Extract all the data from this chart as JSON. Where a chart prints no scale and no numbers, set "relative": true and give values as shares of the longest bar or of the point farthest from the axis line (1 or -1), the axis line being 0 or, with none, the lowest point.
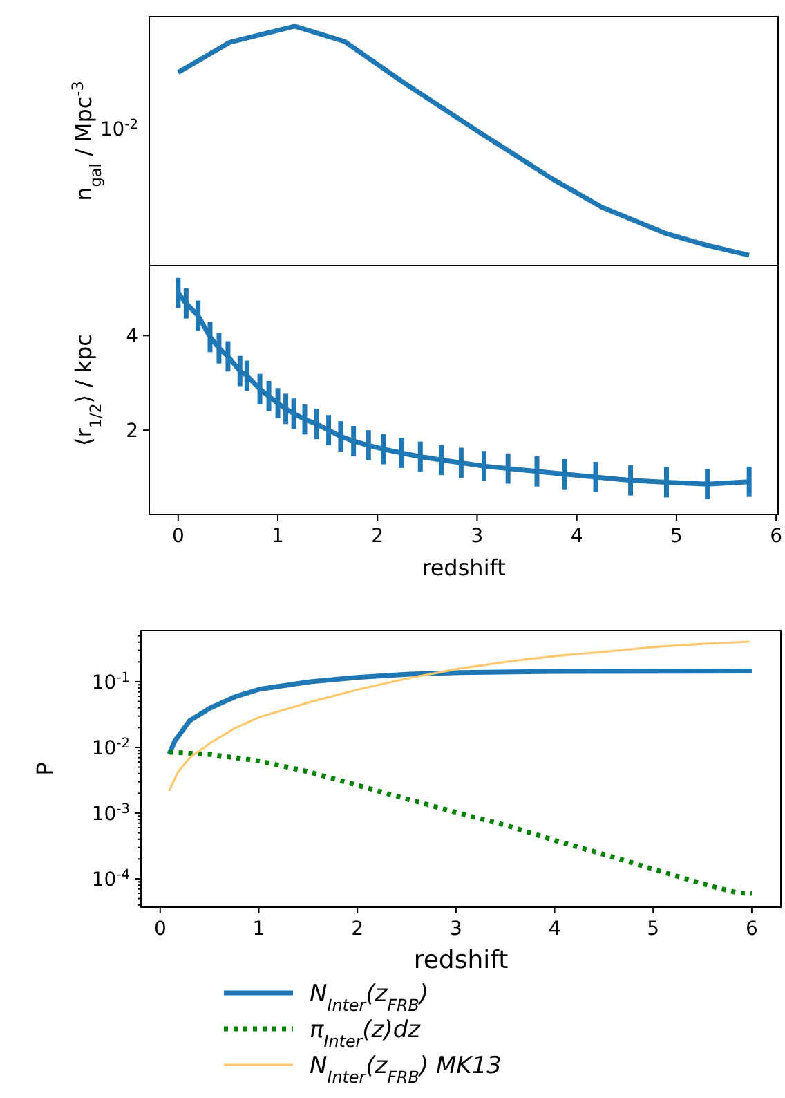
{
  "chart_data": [
    {
      "type": "line",
      "ylabel": "n$_{gal}$ / Mpc$^{-3}$",
      "relative": true,
      "xlim": [
        -0.29,
        6.02
      ],
      "annotations": [
        "10$^{-2}$"
      ],
      "x": [
        0,
        0.52,
        1.17,
        1.67,
        2.26,
        3.01,
        3.75,
        4.25,
        4.9,
        5.31,
        5.73
      ],
      "series": [
        {
          "color": "#1f77b4",
          "values": [
            0.807,
            0.933,
            1,
            0.936,
            0.765,
            0.56,
            0.363,
            0.244,
            0.133,
            0.084,
            0.043
          ]
        }
      ]
    },
    {
      "type": "line",
      "ylabel": "⟨r$_{1/2}$⟩ / kpc",
      "xlabel": "redshift",
      "xlim": [
        -0.29,
        6.02
      ],
      "ylim": [
        0.22,
        5.48
      ],
      "xticks": [
        0,
        1,
        2,
        3,
        4,
        5,
        6
      ],
      "yticks": [
        2,
        4
      ],
      "x": [
        0,
        0.08,
        0.2,
        0.32,
        0.41,
        0.5,
        0.62,
        0.69,
        0.82,
        0.91,
        1.0,
        1.08,
        1.16,
        1.27,
        1.39,
        1.51,
        1.63,
        1.76,
        1.91,
        2.06,
        2.24,
        2.43,
        2.64,
        2.84,
        3.07,
        3.31,
        3.6,
        3.88,
        4.19,
        4.54,
        4.9,
        5.31,
        5.73
      ],
      "series": [
        {
          "color": "#1f77b4",
          "values": [
            4.9,
            4.68,
            4.42,
            3.97,
            3.73,
            3.56,
            3.25,
            3.15,
            2.87,
            2.72,
            2.57,
            2.45,
            2.35,
            2.23,
            2.13,
            2.0,
            1.87,
            1.77,
            1.68,
            1.6,
            1.52,
            1.44,
            1.37,
            1.31,
            1.24,
            1.19,
            1.13,
            1.07,
            1.01,
            0.94,
            0.9,
            0.86,
            0.91
          ],
          "errors": [
            0.32,
            0.32,
            0.32,
            0.32,
            0.32,
            0.32,
            0.32,
            0.32,
            0.32,
            0.32,
            0.32,
            0.32,
            0.32,
            0.32,
            0.32,
            0.32,
            0.32,
            0.32,
            0.32,
            0.32,
            0.32,
            0.32,
            0.32,
            0.32,
            0.32,
            0.32,
            0.32,
            0.32,
            0.32,
            0.32,
            0.32,
            0.32,
            0.32
          ]
        }
      ]
    },
    {
      "type": "line",
      "ylabel": "P",
      "xlabel": "redshift",
      "log": "y",
      "xlim": [
        -0.195,
        6.295
      ],
      "ylim": [
        3.7e-05,
        0.6
      ],
      "xticks": [
        0,
        1,
        2,
        3,
        4,
        5,
        6
      ],
      "legend": "bottom",
      "yticks": [
        {
          "value": 4e-05,
          "label": null
        },
        {
          "value": 5e-05,
          "label": null
        },
        {
          "value": 6e-05,
          "label": null
        },
        {
          "value": 7e-05,
          "label": null
        },
        {
          "value": 8e-05,
          "label": null
        },
        {
          "value": 9e-05,
          "label": null
        },
        {
          "value": 0.0001,
          "label": "10$^{-4}$"
        },
        {
          "value": 0.0002,
          "label": null
        },
        {
          "value": 0.0003,
          "label": null
        },
        {
          "value": 0.0004,
          "label": null
        },
        {
          "value": 0.0005,
          "label": null
        },
        {
          "value": 0.0006,
          "label": null
        },
        {
          "value": 0.0007,
          "label": null
        },
        {
          "value": 0.0008,
          "label": null
        },
        {
          "value": 0.0009,
          "label": null
        },
        {
          "value": 0.001,
          "label": "10$^{-3}$"
        },
        {
          "value": 0.002,
          "label": null
        },
        {
          "value": 0.003,
          "label": null
        },
        {
          "value": 0.004,
          "label": null
        },
        {
          "value": 0.005,
          "label": null
        },
        {
          "value": 0.006,
          "label": null
        },
        {
          "value": 0.007,
          "label": null
        },
        {
          "value": 0.008,
          "label": null
        },
        {
          "value": 0.009,
          "label": null
        },
        {
          "value": 0.01,
          "label": "10$^{-2}$"
        },
        {
          "value": 0.02,
          "label": null
        },
        {
          "value": 0.03,
          "label": null
        },
        {
          "value": 0.04,
          "label": null
        },
        {
          "value": 0.05,
          "label": null
        },
        {
          "value": 0.06,
          "label": null
        },
        {
          "value": 0.07,
          "label": null
        },
        {
          "value": 0.08,
          "label": null
        },
        {
          "value": 0.09,
          "label": null
        },
        {
          "value": 0.1,
          "label": "10$^{-1}$"
        },
        {
          "value": 0.2,
          "label": null
        },
        {
          "value": 0.3,
          "label": null
        },
        {
          "value": 0.4,
          "label": null
        },
        {
          "value": 0.5,
          "label": null
        }
      ],
      "series": [
        {
          "name": "N$_{Inter}$(z$_{FRB}$)",
          "color": "#1f77b4",
          "line_style": "solid",
          "x": [
            0.09,
            0.15,
            0.3,
            0.51,
            0.76,
            1.01,
            1.52,
            2.02,
            2.53,
            3.03,
            4.04,
            6.0
          ],
          "values": [
            0.0079,
            0.0126,
            0.0256,
            0.04,
            0.059,
            0.077,
            0.1,
            0.117,
            0.13,
            0.138,
            0.144,
            0.145
          ]
        },
        {
          "name": "π$_{Inter}$(z)dz",
          "color": "#008000",
          "line_style": "dotted",
          "x": [
            0.09,
            0.51,
            1.01,
            1.52,
            2.02,
            2.53,
            3.03,
            3.54,
            4.04,
            4.55,
            5.06,
            5.56,
            5.86,
            6.0
          ],
          "values": [
            0.0085,
            0.0078,
            0.0062,
            0.0042,
            0.0026,
            0.0016,
            0.001,
            0.00063,
            0.00037,
            0.000224,
            0.000132,
            7.9e-05,
            6.1e-05,
            6e-05
          ]
        },
        {
          "name": "N$_{Inter}$(z$_{FRB}$) MK13",
          "color": "#fdc870",
          "line_style": "solid",
          "x": [
            0.09,
            0.18,
            0.3,
            0.51,
            0.76,
            1.01,
            1.52,
            2.02,
            2.53,
            3.03,
            3.54,
            4.04,
            4.55,
            5.06,
            5.56,
            5.98
          ],
          "values": [
            0.00217,
            0.0042,
            0.007,
            0.0117,
            0.0197,
            0.029,
            0.049,
            0.077,
            0.114,
            0.158,
            0.204,
            0.248,
            0.29,
            0.343,
            0.381,
            0.407
          ]
        }
      ]
    }
  ]
}
